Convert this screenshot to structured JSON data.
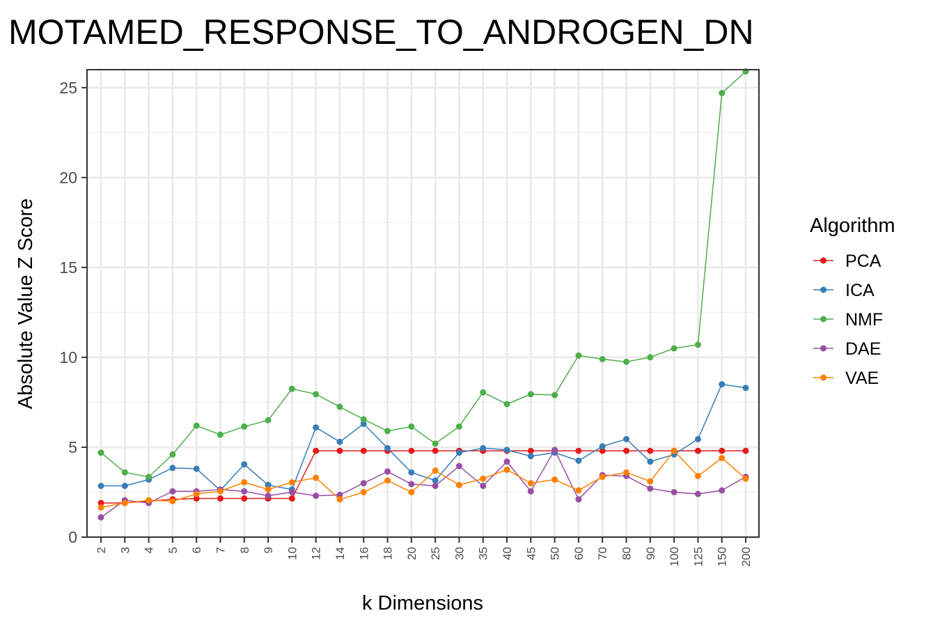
{
  "chart_data": {
    "type": "line",
    "title": "MOTAMED_RESPONSE_TO_ANDROGEN_DN",
    "xlabel": "k Dimensions",
    "ylabel": "Absolute Value Z Score",
    "categories": [
      "2",
      "3",
      "4",
      "5",
      "6",
      "7",
      "8",
      "9",
      "10",
      "12",
      "14",
      "16",
      "18",
      "20",
      "25",
      "30",
      "35",
      "40",
      "45",
      "50",
      "60",
      "70",
      "80",
      "90",
      "100",
      "125",
      "150",
      "200"
    ],
    "ylim": [
      0,
      26
    ],
    "yticks": [
      0,
      5,
      10,
      15,
      20,
      25
    ],
    "grid": true,
    "legend": {
      "title": "Algorithm",
      "placement": "right"
    },
    "series": [
      {
        "name": "PCA",
        "color": "#E41A1C",
        "values": [
          1.9,
          1.9,
          2.0,
          2.1,
          2.15,
          2.15,
          2.15,
          2.15,
          2.15,
          4.8,
          4.8,
          4.8,
          4.8,
          4.8,
          4.8,
          4.8,
          4.8,
          4.8,
          4.8,
          4.8,
          4.8,
          4.8,
          4.8,
          4.8,
          4.8,
          4.8,
          4.8,
          4.8
        ]
      },
      {
        "name": "ICA",
        "color": "#377EB8",
        "values": [
          2.85,
          2.85,
          3.2,
          3.85,
          3.8,
          2.6,
          4.05,
          2.9,
          2.65,
          6.1,
          5.3,
          6.3,
          4.95,
          3.6,
          3.15,
          4.7,
          4.95,
          4.85,
          4.5,
          4.7,
          4.25,
          5.05,
          5.45,
          4.2,
          4.6,
          5.45,
          8.5,
          8.3
        ]
      },
      {
        "name": "NMF",
        "color": "#4DAF4A",
        "values": [
          4.7,
          3.6,
          3.35,
          4.6,
          6.2,
          5.7,
          6.15,
          6.5,
          8.25,
          7.95,
          7.25,
          6.55,
          5.9,
          6.15,
          5.2,
          6.15,
          8.05,
          7.4,
          7.95,
          7.9,
          10.1,
          9.9,
          9.75,
          10.0,
          10.5,
          10.7,
          24.7,
          25.9
        ]
      },
      {
        "name": "DAE",
        "color": "#984EA3",
        "values": [
          1.1,
          2.05,
          1.9,
          2.55,
          2.55,
          2.65,
          2.55,
          2.3,
          2.5,
          2.3,
          2.35,
          3.0,
          3.65,
          2.95,
          2.85,
          3.95,
          2.85,
          4.2,
          2.55,
          4.85,
          2.1,
          3.45,
          3.4,
          2.7,
          2.5,
          2.4,
          2.6,
          3.35
        ]
      },
      {
        "name": "VAE",
        "color": "#FF7F00",
        "values": [
          1.65,
          1.9,
          2.05,
          2.0,
          2.4,
          2.55,
          3.05,
          2.65,
          3.05,
          3.3,
          2.1,
          2.5,
          3.15,
          2.5,
          3.7,
          2.9,
          3.25,
          3.75,
          3.0,
          3.2,
          2.6,
          3.35,
          3.6,
          3.1,
          4.8,
          3.4,
          4.4,
          3.25
        ]
      }
    ]
  }
}
